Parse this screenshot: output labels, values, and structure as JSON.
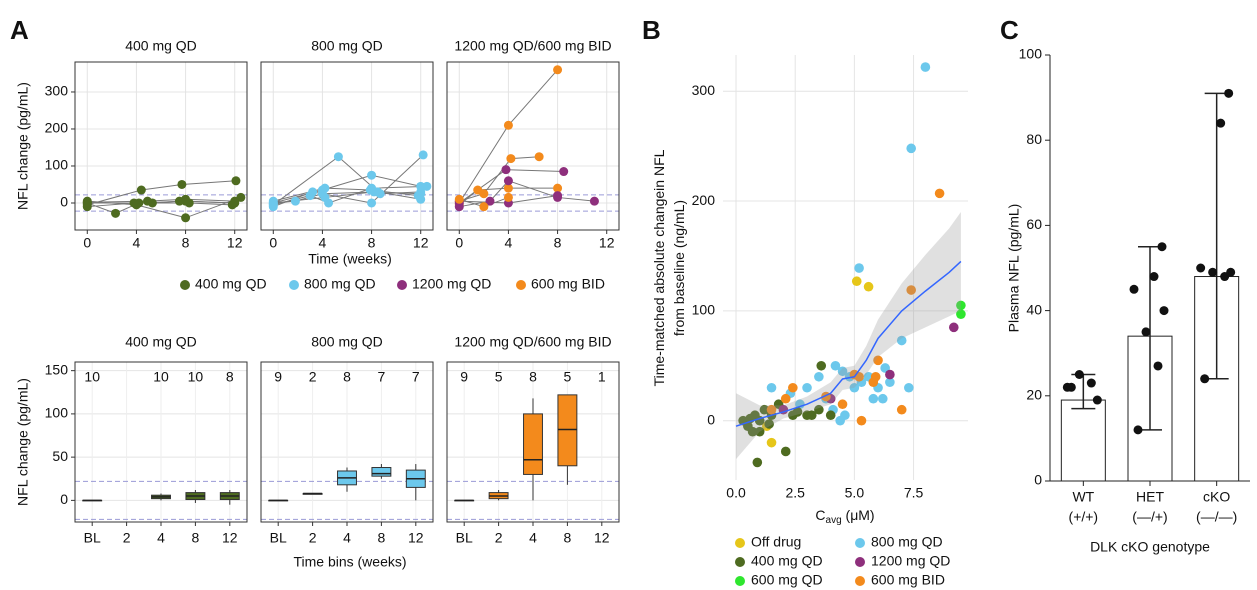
{
  "chart_data": [
    {
      "type": "spaghetti",
      "panel_label": "A",
      "ylabel": "NFL change (pg/mL)",
      "xlabel": "Time (weeks)",
      "xlim": [
        -1,
        13
      ],
      "ylim": [
        -73,
        381
      ],
      "xticks": [
        0,
        4,
        8,
        12
      ],
      "yticks": [
        0,
        100,
        200,
        300
      ],
      "ref_lines": [
        -22,
        22
      ],
      "grid": true,
      "series": [
        {
          "name": "400 mg QD",
          "color": "#4e6b20"
        },
        {
          "name": "800 mg QD",
          "color": "#6cc8ec"
        },
        {
          "name": "1200 mg QD",
          "color": "#8e2f7c"
        },
        {
          "name": "600 mg BID",
          "color": "#f38a1c"
        }
      ],
      "facets": [
        {
          "title": "400 mg QD",
          "subjects": [
            {
              "series": 0,
              "x": [
                0,
                2.3,
                4.2,
                8,
                12
              ],
              "values": [
                0,
                -28,
                0,
                5,
                0
              ]
            },
            {
              "series": 0,
              "x": [
                0,
                4.4,
                7.7,
                12.1
              ],
              "values": [
                -5,
                35,
                50,
                60
              ]
            },
            {
              "series": 0,
              "x": [
                0,
                4,
                8,
                12.5
              ],
              "values": [
                5,
                -5,
                -40,
                15
              ]
            },
            {
              "series": 0,
              "x": [
                0,
                3.8,
                8.3,
                11.8
              ],
              "values": [
                -10,
                0,
                0,
                -5
              ]
            },
            {
              "series": 0,
              "x": [
                0,
                4.9,
                8,
                12
              ],
              "values": [
                2,
                5,
                10,
                5
              ]
            },
            {
              "series": 0,
              "x": [
                0,
                5.3,
                7.5,
                12
              ],
              "values": [
                0,
                0,
                5,
                0
              ]
            }
          ]
        },
        {
          "title": "800 mg QD",
          "subjects": [
            {
              "series": 1,
              "x": [
                0,
                5.3,
                8.7,
                12
              ],
              "values": [
                -5,
                125,
                25,
                30
              ]
            },
            {
              "series": 1,
              "x": [
                0,
                4,
                8,
                12
              ],
              "values": [
                0,
                35,
                75,
                45
              ]
            },
            {
              "series": 1,
              "x": [
                0,
                3.2,
                8,
                12.2
              ],
              "values": [
                -10,
                30,
                0,
                130
              ]
            },
            {
              "series": 1,
              "x": [
                0,
                4.2,
                7.9,
                11.8
              ],
              "values": [
                5,
                40,
                35,
                20
              ]
            },
            {
              "series": 1,
              "x": [
                0,
                1.8,
                4,
                8.5,
                12
              ],
              "values": [
                0,
                5,
                25,
                30,
                10
              ]
            },
            {
              "series": 1,
              "x": [
                0,
                3,
                4.5,
                8,
                12.5
              ],
              "values": [
                -5,
                20,
                0,
                40,
                45
              ]
            },
            {
              "series": 1,
              "x": [
                0,
                4.2,
                8.2,
                12
              ],
              "values": [
                0,
                15,
                30,
                25
              ]
            }
          ]
        },
        {
          "title": "1200 mg QD/600 mg BID",
          "subjects": [
            {
              "series": 3,
              "x": [
                0,
                4,
                8
              ],
              "values": [
                0,
                210,
                360
              ]
            },
            {
              "series": 3,
              "x": [
                0,
                2,
                4.2,
                6.5
              ],
              "values": [
                5,
                25,
                120,
                125
              ]
            },
            {
              "series": 3,
              "x": [
                0,
                1.5,
                4,
                8
              ],
              "values": [
                -5,
                35,
                40,
                40
              ]
            },
            {
              "series": 2,
              "x": [
                0,
                3.8,
                8.5
              ],
              "values": [
                0,
                90,
                85
              ]
            },
            {
              "series": 2,
              "x": [
                0,
                2.5,
                4,
                8,
                11
              ],
              "values": [
                -10,
                5,
                60,
                15,
                5
              ]
            },
            {
              "series": 2,
              "x": [
                0,
                4,
                8
              ],
              "values": [
                5,
                0,
                20
              ]
            },
            {
              "series": 3,
              "x": [
                0,
                2,
                4
              ],
              "values": [
                10,
                -10,
                15
              ]
            }
          ]
        }
      ]
    },
    {
      "type": "box",
      "ylabel": "NFL change (pg/mL)",
      "xlabel": "Time bins (weeks)",
      "ylim": [
        -25,
        160
      ],
      "yticks": [
        0,
        50,
        100,
        150
      ],
      "ref_lines": [
        -22,
        22
      ],
      "grid": true,
      "categories": [
        "BL",
        "2",
        "4",
        "8",
        "12"
      ],
      "facets": [
        {
          "title": "400 mg QD",
          "color": "#4e6b20",
          "counts": [
            10,
            null,
            10,
            10,
            8
          ],
          "boxes": [
            {
              "min": 0,
              "q1": 0,
              "median": 0,
              "q3": 0,
              "max": 0
            },
            null,
            {
              "min": 0,
              "q1": 2,
              "median": 4,
              "q3": 6,
              "max": 8
            },
            {
              "min": -3,
              "q1": 1,
              "median": 5,
              "q3": 9,
              "max": 12
            },
            {
              "min": -5,
              "q1": 1,
              "median": 5,
              "q3": 9,
              "max": 12
            }
          ]
        },
        {
          "title": "800 mg QD",
          "color": "#6cc8ec",
          "counts": [
            9,
            2,
            8,
            7,
            7
          ],
          "boxes": [
            {
              "min": 0,
              "q1": 0,
              "median": 0,
              "q3": 0,
              "max": 0
            },
            {
              "min": 7,
              "q1": 7,
              "median": 8,
              "q3": 8,
              "max": 8
            },
            {
              "min": 10,
              "q1": 18,
              "median": 26,
              "q3": 34,
              "max": 38
            },
            {
              "min": 25,
              "q1": 28,
              "median": 31,
              "q3": 38,
              "max": 42
            },
            {
              "min": 0,
              "q1": 15,
              "median": 25,
              "q3": 35,
              "max": 42
            }
          ]
        },
        {
          "title": "1200 mg QD/600 mg BID",
          "color": "#f38a1c",
          "counts": [
            9,
            5,
            8,
            5,
            1
          ],
          "boxes": [
            {
              "min": 0,
              "q1": 0,
              "median": 0,
              "q3": 0,
              "max": 0
            },
            {
              "min": 0,
              "q1": 2,
              "median": 5,
              "q3": 9,
              "max": 12
            },
            {
              "min": 0,
              "q1": 30,
              "median": 47,
              "q3": 100,
              "max": 118
            },
            {
              "min": 18,
              "q1": 40,
              "median": 82,
              "q3": 122,
              "max": 122
            },
            null
          ]
        }
      ]
    },
    {
      "type": "scatter",
      "panel_label": "B",
      "ylabel": [
        "Time-matched absolute changein NFL",
        "from baseline (ng/mL)"
      ],
      "xlabel": {
        "main": "C",
        "sub": "avg",
        "unit": " (μM)"
      },
      "xlim": [
        -0.55,
        9.8
      ],
      "ylim": [
        -54,
        333
      ],
      "grid": true,
      "xticks": [
        {
          "value": 0,
          "label": "0.0"
        },
        {
          "value": 2.5,
          "label": "2.5"
        },
        {
          "value": 5,
          "label": "5.0"
        },
        {
          "value": 7.5,
          "label": "7.5"
        }
      ],
      "yticks": [
        0,
        100,
        200,
        300
      ],
      "series": [
        {
          "name": "Off drug",
          "color": "#e6c619",
          "x": [
            5.1,
            5.6,
            1.5,
            1.3
          ],
          "values": [
            127,
            122,
            -20,
            -5
          ]
        },
        {
          "name": "800 mg QD",
          "color": "#6cc8ec",
          "x": [
            8,
            7.4,
            5.2,
            4.2,
            4.5,
            4.8,
            5,
            5.3,
            5.6,
            6,
            6.3,
            6.5,
            7,
            7.3,
            3.8,
            4.1,
            4.6,
            3,
            2.3,
            1.5,
            2.7,
            3.5,
            5.8,
            6.2,
            4.4
          ],
          "values": [
            322,
            248,
            139,
            50,
            45,
            40,
            30,
            35,
            40,
            30,
            48,
            35,
            73,
            30,
            20,
            10,
            5,
            30,
            25,
            30,
            15,
            40,
            20,
            20,
            0
          ]
        },
        {
          "name": "400 mg QD",
          "color": "#4e6b20",
          "x": [
            0.3,
            0.5,
            0.7,
            0.8,
            1,
            1,
            1.2,
            1.5,
            0.9,
            2.1,
            1.8,
            2.4,
            3,
            3.5,
            3.6,
            2.6,
            1.4,
            0.6,
            3.2,
            4
          ],
          "values": [
            0,
            -5,
            -10,
            5,
            -10,
            0,
            10,
            5,
            -38,
            -28,
            15,
            5,
            5,
            10,
            50,
            8,
            -3,
            2,
            5,
            5
          ]
        },
        {
          "name": "1200 mg QD",
          "color": "#8e2f7c",
          "x": [
            9.2,
            4,
            6.5,
            2
          ],
          "values": [
            85,
            20,
            42,
            10
          ]
        },
        {
          "name": "600 mg QD",
          "color": "#2ee62e",
          "x": [
            9.5,
            9.5
          ],
          "values": [
            105,
            97
          ]
        },
        {
          "name": "600 mg BID",
          "color": "#f38a1c",
          "x": [
            8.6,
            7.4,
            6,
            5.2,
            5,
            5.8,
            5.9,
            4.5,
            7,
            5.3,
            2.4,
            2.1,
            1.5,
            3.8
          ],
          "values": [
            207,
            119,
            55,
            40,
            42,
            35,
            40,
            15,
            10,
            0,
            30,
            20,
            10,
            22
          ]
        }
      ],
      "trend": {
        "color": "#3366ff",
        "x": [
          0,
          1,
          2,
          3,
          4,
          4.5,
          5,
          5.5,
          6,
          7,
          8,
          9,
          9.5
        ],
        "values": [
          -5,
          2,
          8,
          15,
          25,
          38,
          40,
          55,
          75,
          100,
          118,
          135,
          145
        ],
        "lower": [
          -35,
          -10,
          2,
          8,
          15,
          28,
          30,
          42,
          58,
          75,
          85,
          95,
          100
        ],
        "upper": [
          25,
          14,
          14,
          22,
          35,
          48,
          50,
          68,
          92,
          125,
          151,
          175,
          190
        ]
      }
    },
    {
      "type": "bar",
      "panel_label": "C",
      "ylabel": "Plasma NFL (pg/mL)",
      "xlabel": "DLK cKO genotype",
      "categories": [
        "WT",
        "HET",
        "cKO"
      ],
      "category_genotypes": [
        "(+/+)",
        "(—/+)",
        "(—/—)"
      ],
      "values": [
        19,
        34,
        48
      ],
      "err_low": [
        17,
        12,
        24
      ],
      "err_high": [
        25,
        55,
        91
      ],
      "points": [
        [
          22,
          23,
          25,
          19,
          22
        ],
        [
          12,
          27,
          35,
          40,
          45,
          48,
          55
        ],
        [
          24,
          48,
          49,
          49,
          50,
          84,
          91
        ]
      ],
      "ylim": [
        0,
        100
      ],
      "yticks": [
        0,
        20,
        40,
        60,
        80,
        100
      ],
      "color": "#ffffff"
    }
  ]
}
